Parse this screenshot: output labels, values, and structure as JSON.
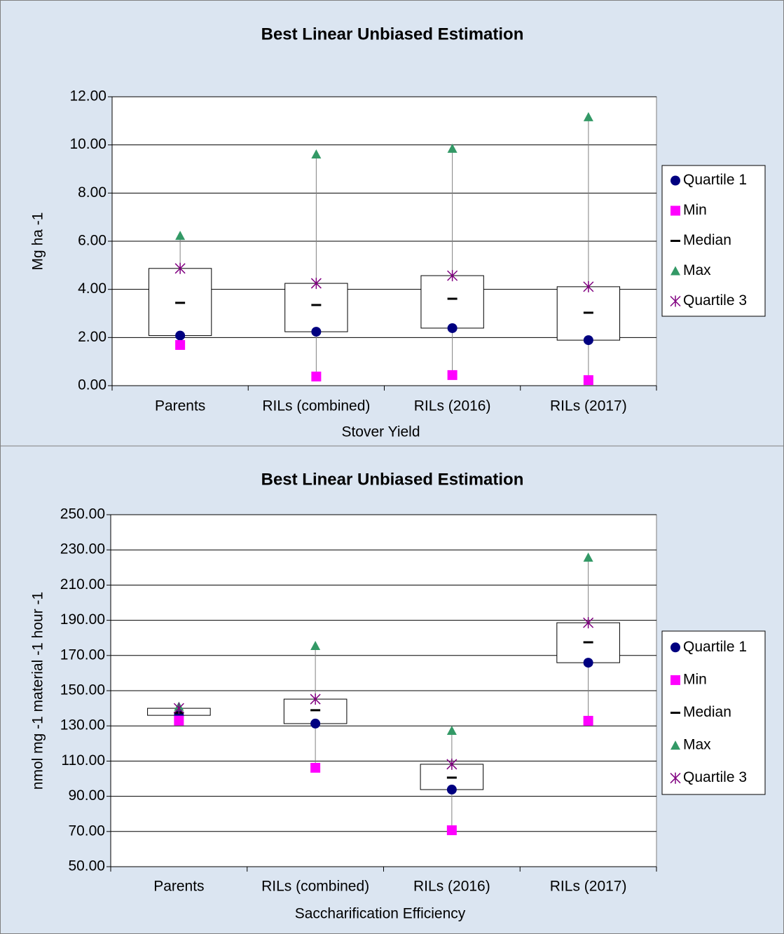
{
  "chart_data": [
    {
      "type": "box",
      "title": "Best Linear Unbiased Estimation",
      "x_label": "Stover Yield",
      "y_label": "Mg ha -1",
      "categories": [
        "Parents",
        "RILs (combined)",
        "RILs (2016)",
        "RILs (2017)"
      ],
      "series": [
        {
          "name": "Quartile 1",
          "color": "#000080",
          "marker": "circle",
          "values": [
            2.08,
            2.24,
            2.39,
            1.89
          ]
        },
        {
          "name": "Min",
          "color": "#ff00ff",
          "marker": "square",
          "values": [
            1.69,
            0.38,
            0.44,
            0.23
          ]
        },
        {
          "name": "Median",
          "color": "#000000",
          "marker": "dash",
          "values": [
            3.44,
            3.35,
            3.61,
            3.03
          ]
        },
        {
          "name": "Max",
          "color": "#339966",
          "marker": "triangle",
          "values": [
            6.23,
            9.61,
            9.85,
            11.16
          ]
        },
        {
          "name": "Quartile 3",
          "color": "#800080",
          "marker": "star",
          "values": [
            4.87,
            4.25,
            4.57,
            4.11
          ]
        }
      ],
      "ylim": [
        0,
        12
      ],
      "yticks": [
        {
          "value": 0,
          "label": "0.00"
        },
        {
          "value": 2,
          "label": "2.00"
        },
        {
          "value": 4,
          "label": "4.00"
        },
        {
          "value": 6,
          "label": "6.00"
        },
        {
          "value": 8,
          "label": "8.00"
        },
        {
          "value": 10,
          "label": "10.00"
        },
        {
          "value": 12,
          "label": "12.00"
        }
      ],
      "grid": true,
      "legend": "right"
    },
    {
      "type": "box",
      "title": "Best Linear Unbiased Estimation",
      "x_label": "Saccharification Efficiency",
      "y_label": "nmol mg -1 material -1 hour -1",
      "categories": [
        "Parents",
        "RILs (combined)",
        "RILs (2016)",
        "RILs (2017)"
      ],
      "series": [
        {
          "name": "Quartile 1",
          "color": "#000080",
          "marker": "circle",
          "values": [
            136,
            131.3,
            93.8,
            165.9
          ]
        },
        {
          "name": "Min",
          "color": "#ff00ff",
          "marker": "square",
          "values": [
            133,
            106.2,
            70.7,
            132.9
          ]
        },
        {
          "name": "Median",
          "color": "#000000",
          "marker": "dash",
          "values": [
            137.5,
            138.9,
            100.6,
            177.5
          ]
        },
        {
          "name": "Max",
          "color": "#339966",
          "marker": "triangle",
          "values": [
            141,
            175.5,
            127.3,
            225.7
          ]
        },
        {
          "name": "Quartile 3",
          "color": "#800080",
          "marker": "star",
          "values": [
            140,
            145.2,
            108.2,
            188.6
          ]
        }
      ],
      "ylim": [
        50,
        250
      ],
      "yticks": [
        {
          "value": 50,
          "label": "50.00"
        },
        {
          "value": 70,
          "label": "70.00"
        },
        {
          "value": 90,
          "label": "90.00"
        },
        {
          "value": 110,
          "label": "110.00"
        },
        {
          "value": 130,
          "label": "130.00"
        },
        {
          "value": 150,
          "label": "150.00"
        },
        {
          "value": 170,
          "label": "170.00"
        },
        {
          "value": 190,
          "label": "190.00"
        },
        {
          "value": 210,
          "label": "210.00"
        },
        {
          "value": 230,
          "label": "230.00"
        },
        {
          "value": 250,
          "label": "250.00"
        }
      ],
      "grid": true,
      "legend": "right"
    }
  ]
}
